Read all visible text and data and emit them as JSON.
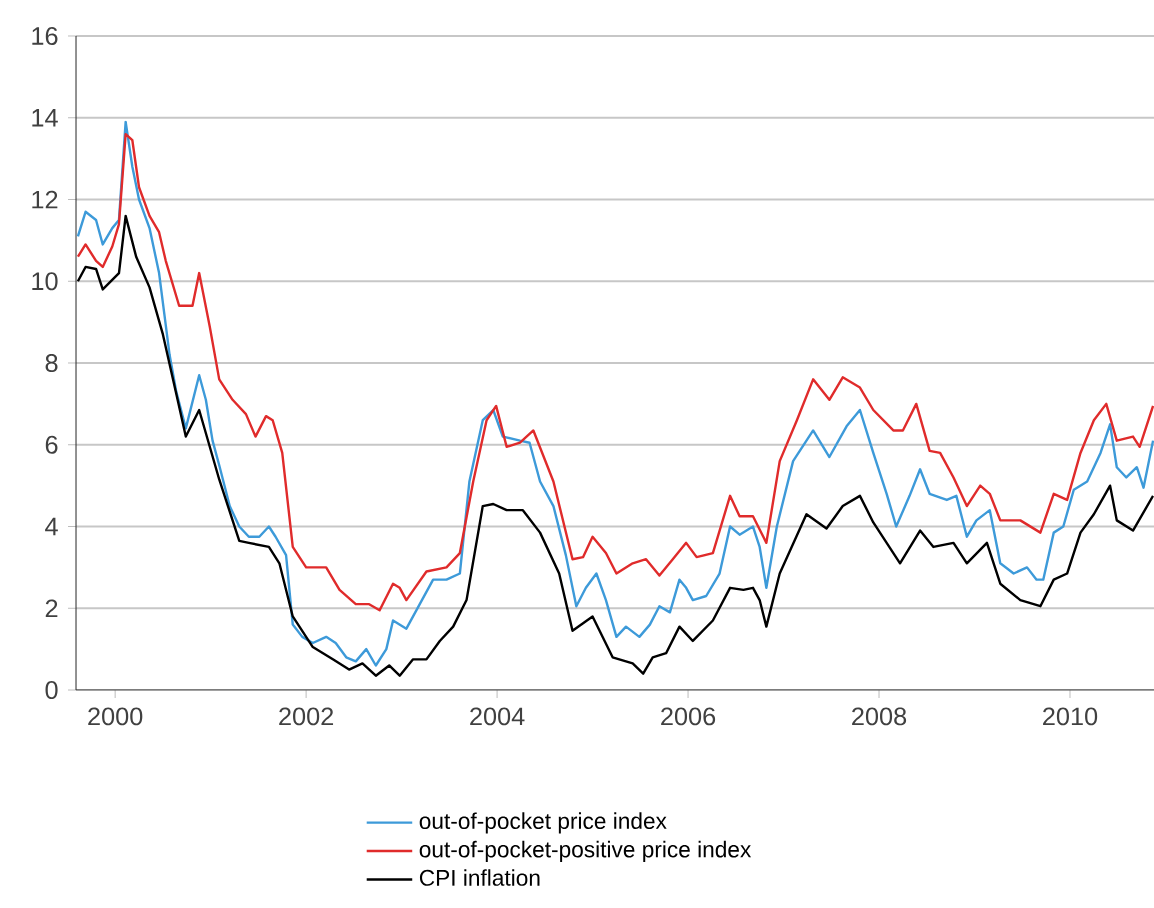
{
  "chart_data": {
    "type": "line",
    "xlim": [
      1999.59,
      2010.88
    ],
    "xticks": [
      2000,
      2002,
      2004,
      2006,
      2008,
      2010
    ],
    "ylim": [
      0,
      16
    ],
    "yticks": [
      0,
      2,
      4,
      6,
      8,
      10,
      12,
      14,
      16
    ],
    "grid": "y",
    "legend": "bottom",
    "marker": "none",
    "line_style": "solid",
    "series": [
      {
        "name": "out-of-pocket price index",
        "color": "#3d9ad9",
        "x": [
          1999.61,
          1999.69,
          1999.8,
          1999.87,
          1999.97,
          2000.04,
          2000.11,
          2000.18,
          2000.25,
          2000.36,
          2000.46,
          2000.57,
          2000.64,
          2000.74,
          2000.88,
          2000.95,
          2001.02,
          2001.09,
          2001.2,
          2001.3,
          2001.4,
          2001.51,
          2001.61,
          2001.68,
          2001.79,
          2001.86,
          2001.96,
          2002.07,
          2002.21,
          2002.31,
          2002.42,
          2002.52,
          2002.63,
          2002.73,
          2002.84,
          2002.91,
          2003.05,
          2003.19,
          2003.33,
          2003.47,
          2003.61,
          2003.71,
          2003.85,
          2003.96,
          2004.06,
          2004.24,
          2004.34,
          2004.45,
          2004.59,
          2004.72,
          2004.83,
          2004.93,
          2005.04,
          2005.14,
          2005.25,
          2005.35,
          2005.49,
          2005.6,
          2005.7,
          2005.81,
          2005.91,
          2005.98,
          2006.05,
          2006.19,
          2006.33,
          2006.44,
          2006.54,
          2006.68,
          2006.75,
          2006.82,
          2006.93,
          2007.1,
          2007.31,
          2007.48,
          2007.66,
          2007.8,
          2007.94,
          2008.08,
          2008.18,
          2008.32,
          2008.43,
          2008.53,
          2008.71,
          2008.81,
          2008.92,
          2009.02,
          2009.16,
          2009.27,
          2009.41,
          2009.55,
          2009.65,
          2009.72,
          2009.83,
          2009.93,
          2010.04,
          2010.18,
          2010.32,
          2010.42,
          2010.49,
          2010.59,
          2010.7,
          2010.77,
          2010.87
        ],
        "values": [
          11.1,
          11.7,
          11.5,
          10.9,
          11.3,
          11.5,
          13.9,
          12.8,
          12.0,
          11.3,
          10.2,
          8.2,
          7.3,
          6.4,
          7.7,
          7.1,
          6.1,
          5.5,
          4.5,
          4.0,
          3.75,
          3.75,
          4.0,
          3.75,
          3.3,
          1.6,
          1.3,
          1.15,
          1.3,
          1.15,
          0.8,
          0.7,
          1.0,
          0.6,
          1.0,
          1.7,
          1.5,
          2.1,
          2.7,
          2.7,
          2.85,
          5.1,
          6.6,
          6.85,
          6.2,
          6.1,
          6.05,
          5.1,
          4.5,
          3.3,
          2.05,
          2.5,
          2.85,
          2.2,
          1.3,
          1.55,
          1.3,
          1.6,
          2.05,
          1.9,
          2.7,
          2.5,
          2.2,
          2.3,
          2.85,
          4.0,
          3.8,
          4.0,
          3.5,
          2.5,
          4.0,
          5.6,
          6.35,
          5.7,
          6.45,
          6.85,
          5.8,
          4.8,
          4.0,
          4.75,
          5.4,
          4.8,
          4.65,
          4.75,
          3.75,
          4.15,
          4.4,
          3.1,
          2.85,
          3.0,
          2.7,
          2.7,
          3.85,
          4.0,
          4.9,
          5.1,
          5.8,
          6.5,
          5.45,
          5.2,
          5.45,
          4.95,
          6.1
        ]
      },
      {
        "name": "out-of-pocket-positive price index",
        "color": "#e02b2b",
        "x": [
          1999.61,
          1999.69,
          1999.8,
          1999.87,
          1999.97,
          2000.04,
          2000.11,
          2000.18,
          2000.25,
          2000.36,
          2000.46,
          2000.53,
          2000.67,
          2000.81,
          2000.88,
          2000.99,
          2001.09,
          2001.23,
          2001.37,
          2001.47,
          2001.58,
          2001.65,
          2001.75,
          2001.86,
          2002.0,
          2002.21,
          2002.35,
          2002.52,
          2002.66,
          2002.77,
          2002.91,
          2002.98,
          2003.05,
          2003.26,
          2003.47,
          2003.61,
          2003.75,
          2003.89,
          2003.99,
          2004.1,
          2004.24,
          2004.38,
          2004.59,
          2004.79,
          2004.9,
          2005.0,
          2005.14,
          2005.25,
          2005.42,
          2005.56,
          2005.7,
          2005.84,
          2005.98,
          2006.09,
          2006.26,
          2006.44,
          2006.54,
          2006.68,
          2006.82,
          2006.96,
          2007.14,
          2007.31,
          2007.48,
          2007.62,
          2007.8,
          2007.94,
          2008.15,
          2008.25,
          2008.39,
          2008.53,
          2008.64,
          2008.78,
          2008.92,
          2009.06,
          2009.16,
          2009.27,
          2009.48,
          2009.69,
          2009.83,
          2009.97,
          2010.11,
          2010.25,
          2010.38,
          2010.49,
          2010.66,
          2010.73,
          2010.87
        ],
        "values": [
          10.6,
          10.9,
          10.5,
          10.35,
          10.85,
          11.4,
          13.6,
          13.45,
          12.3,
          11.6,
          11.2,
          10.5,
          9.4,
          9.4,
          10.2,
          8.9,
          7.6,
          7.1,
          6.75,
          6.2,
          6.7,
          6.6,
          5.8,
          3.5,
          3.0,
          3.0,
          2.45,
          2.1,
          2.1,
          1.95,
          2.6,
          2.5,
          2.2,
          2.9,
          3.0,
          3.35,
          5.1,
          6.6,
          6.95,
          5.95,
          6.05,
          6.35,
          5.1,
          3.2,
          3.25,
          3.75,
          3.35,
          2.85,
          3.1,
          3.2,
          2.8,
          3.2,
          3.6,
          3.25,
          3.35,
          4.75,
          4.25,
          4.25,
          3.6,
          5.6,
          6.6,
          7.6,
          7.1,
          7.65,
          7.4,
          6.85,
          6.35,
          6.35,
          7.0,
          5.85,
          5.8,
          5.2,
          4.5,
          5.0,
          4.8,
          4.15,
          4.15,
          3.85,
          4.8,
          4.65,
          5.8,
          6.6,
          7.0,
          6.1,
          6.2,
          5.95,
          6.95
        ]
      },
      {
        "name": "CPI inflation",
        "color": "#000000",
        "x": [
          1999.61,
          1999.69,
          1999.8,
          1999.87,
          2000.04,
          2000.11,
          2000.22,
          2000.36,
          2000.5,
          2000.64,
          2000.74,
          2000.88,
          2001.09,
          2001.3,
          2001.4,
          2001.61,
          2001.72,
          2001.86,
          2002.07,
          2002.28,
          2002.45,
          2002.59,
          2002.73,
          2002.87,
          2002.98,
          2003.12,
          2003.26,
          2003.4,
          2003.54,
          2003.68,
          2003.85,
          2003.96,
          2004.1,
          2004.27,
          2004.45,
          2004.65,
          2004.79,
          2005.0,
          2005.21,
          2005.42,
          2005.53,
          2005.63,
          2005.77,
          2005.91,
          2006.05,
          2006.26,
          2006.44,
          2006.58,
          2006.68,
          2006.75,
          2006.82,
          2006.96,
          2007.24,
          2007.45,
          2007.62,
          2007.8,
          2007.94,
          2008.22,
          2008.43,
          2008.57,
          2008.78,
          2008.92,
          2009.13,
          2009.27,
          2009.48,
          2009.69,
          2009.83,
          2009.97,
          2010.11,
          2010.25,
          2010.42,
          2010.49,
          2010.66,
          2010.87
        ],
        "values": [
          10.0,
          10.35,
          10.3,
          9.8,
          10.2,
          11.6,
          10.6,
          9.85,
          8.7,
          7.25,
          6.2,
          6.85,
          5.15,
          3.65,
          3.6,
          3.5,
          3.1,
          1.8,
          1.05,
          0.75,
          0.5,
          0.65,
          0.35,
          0.6,
          0.35,
          0.75,
          0.75,
          1.2,
          1.55,
          2.2,
          4.5,
          4.55,
          4.4,
          4.4,
          3.85,
          2.85,
          1.45,
          1.8,
          0.8,
          0.65,
          0.4,
          0.8,
          0.9,
          1.55,
          1.2,
          1.7,
          2.5,
          2.45,
          2.5,
          2.2,
          1.55,
          2.85,
          4.3,
          3.95,
          4.5,
          4.75,
          4.1,
          3.1,
          3.9,
          3.5,
          3.6,
          3.1,
          3.6,
          2.6,
          2.2,
          2.05,
          2.7,
          2.85,
          3.85,
          4.3,
          5.0,
          4.15,
          3.9,
          4.75
        ]
      }
    ]
  }
}
